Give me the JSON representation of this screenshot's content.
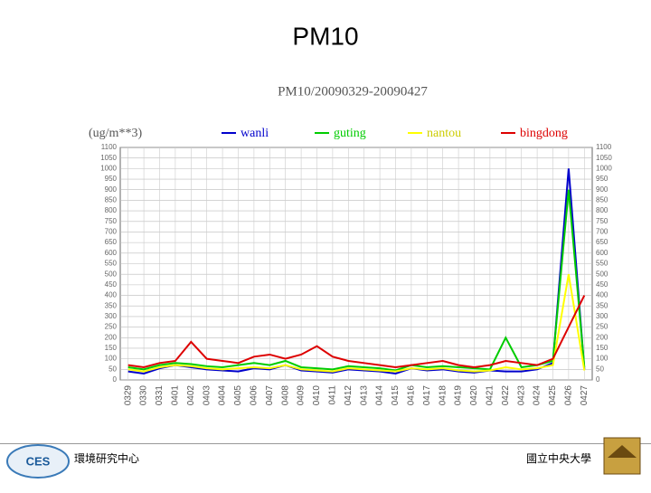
{
  "slide_title": "PM10",
  "chart_data": {
    "type": "line",
    "title": "PM10/20090329-20090427",
    "y_label": "(ug/m**3)",
    "categories": [
      "0329",
      "0330",
      "0331",
      "0401",
      "0402",
      "0403",
      "0404",
      "0405",
      "0406",
      "0407",
      "0408",
      "0409",
      "0410",
      "0411",
      "0412",
      "0413",
      "0414",
      "0415",
      "0416",
      "0417",
      "0418",
      "0419",
      "0420",
      "0421",
      "0422",
      "0423",
      "0424",
      "0425",
      "0426",
      "0427"
    ],
    "series": [
      {
        "name": "wanli",
        "color": "#0000cc",
        "values": [
          40,
          30,
          55,
          70,
          60,
          50,
          45,
          40,
          55,
          50,
          70,
          45,
          40,
          35,
          50,
          45,
          40,
          30,
          55,
          45,
          50,
          40,
          35,
          45,
          40,
          40,
          50,
          80,
          1000,
          50
        ]
      },
      {
        "name": "guting",
        "color": "#00cc00",
        "values": [
          60,
          50,
          70,
          80,
          75,
          65,
          60,
          70,
          80,
          70,
          90,
          60,
          55,
          50,
          65,
          60,
          55,
          45,
          70,
          60,
          65,
          60,
          55,
          50,
          200,
          60,
          70,
          90,
          900,
          60
        ]
      },
      {
        "name": "nantou",
        "color": "#ffff00",
        "values": [
          50,
          40,
          60,
          70,
          65,
          55,
          50,
          55,
          60,
          55,
          70,
          50,
          45,
          40,
          55,
          50,
          45,
          40,
          55,
          50,
          55,
          45,
          40,
          45,
          60,
          50,
          55,
          70,
          500,
          45
        ]
      },
      {
        "name": "bingdong",
        "color": "#dd0000",
        "values": [
          70,
          60,
          80,
          90,
          180,
          100,
          90,
          80,
          110,
          120,
          100,
          120,
          160,
          110,
          90,
          80,
          70,
          60,
          70,
          80,
          90,
          70,
          60,
          70,
          90,
          80,
          70,
          100,
          250,
          400
        ]
      }
    ],
    "ylim": [
      0,
      1100
    ],
    "yticks": [
      0,
      50,
      100,
      150,
      200,
      250,
      300,
      350,
      400,
      450,
      500,
      550,
      600,
      650,
      700,
      750,
      800,
      850,
      900,
      950,
      1000,
      1050,
      1100
    ],
    "grid": true
  },
  "footer": {
    "left": "環境研究中心",
    "logo_left": "CES",
    "right": "國立中央大學"
  }
}
